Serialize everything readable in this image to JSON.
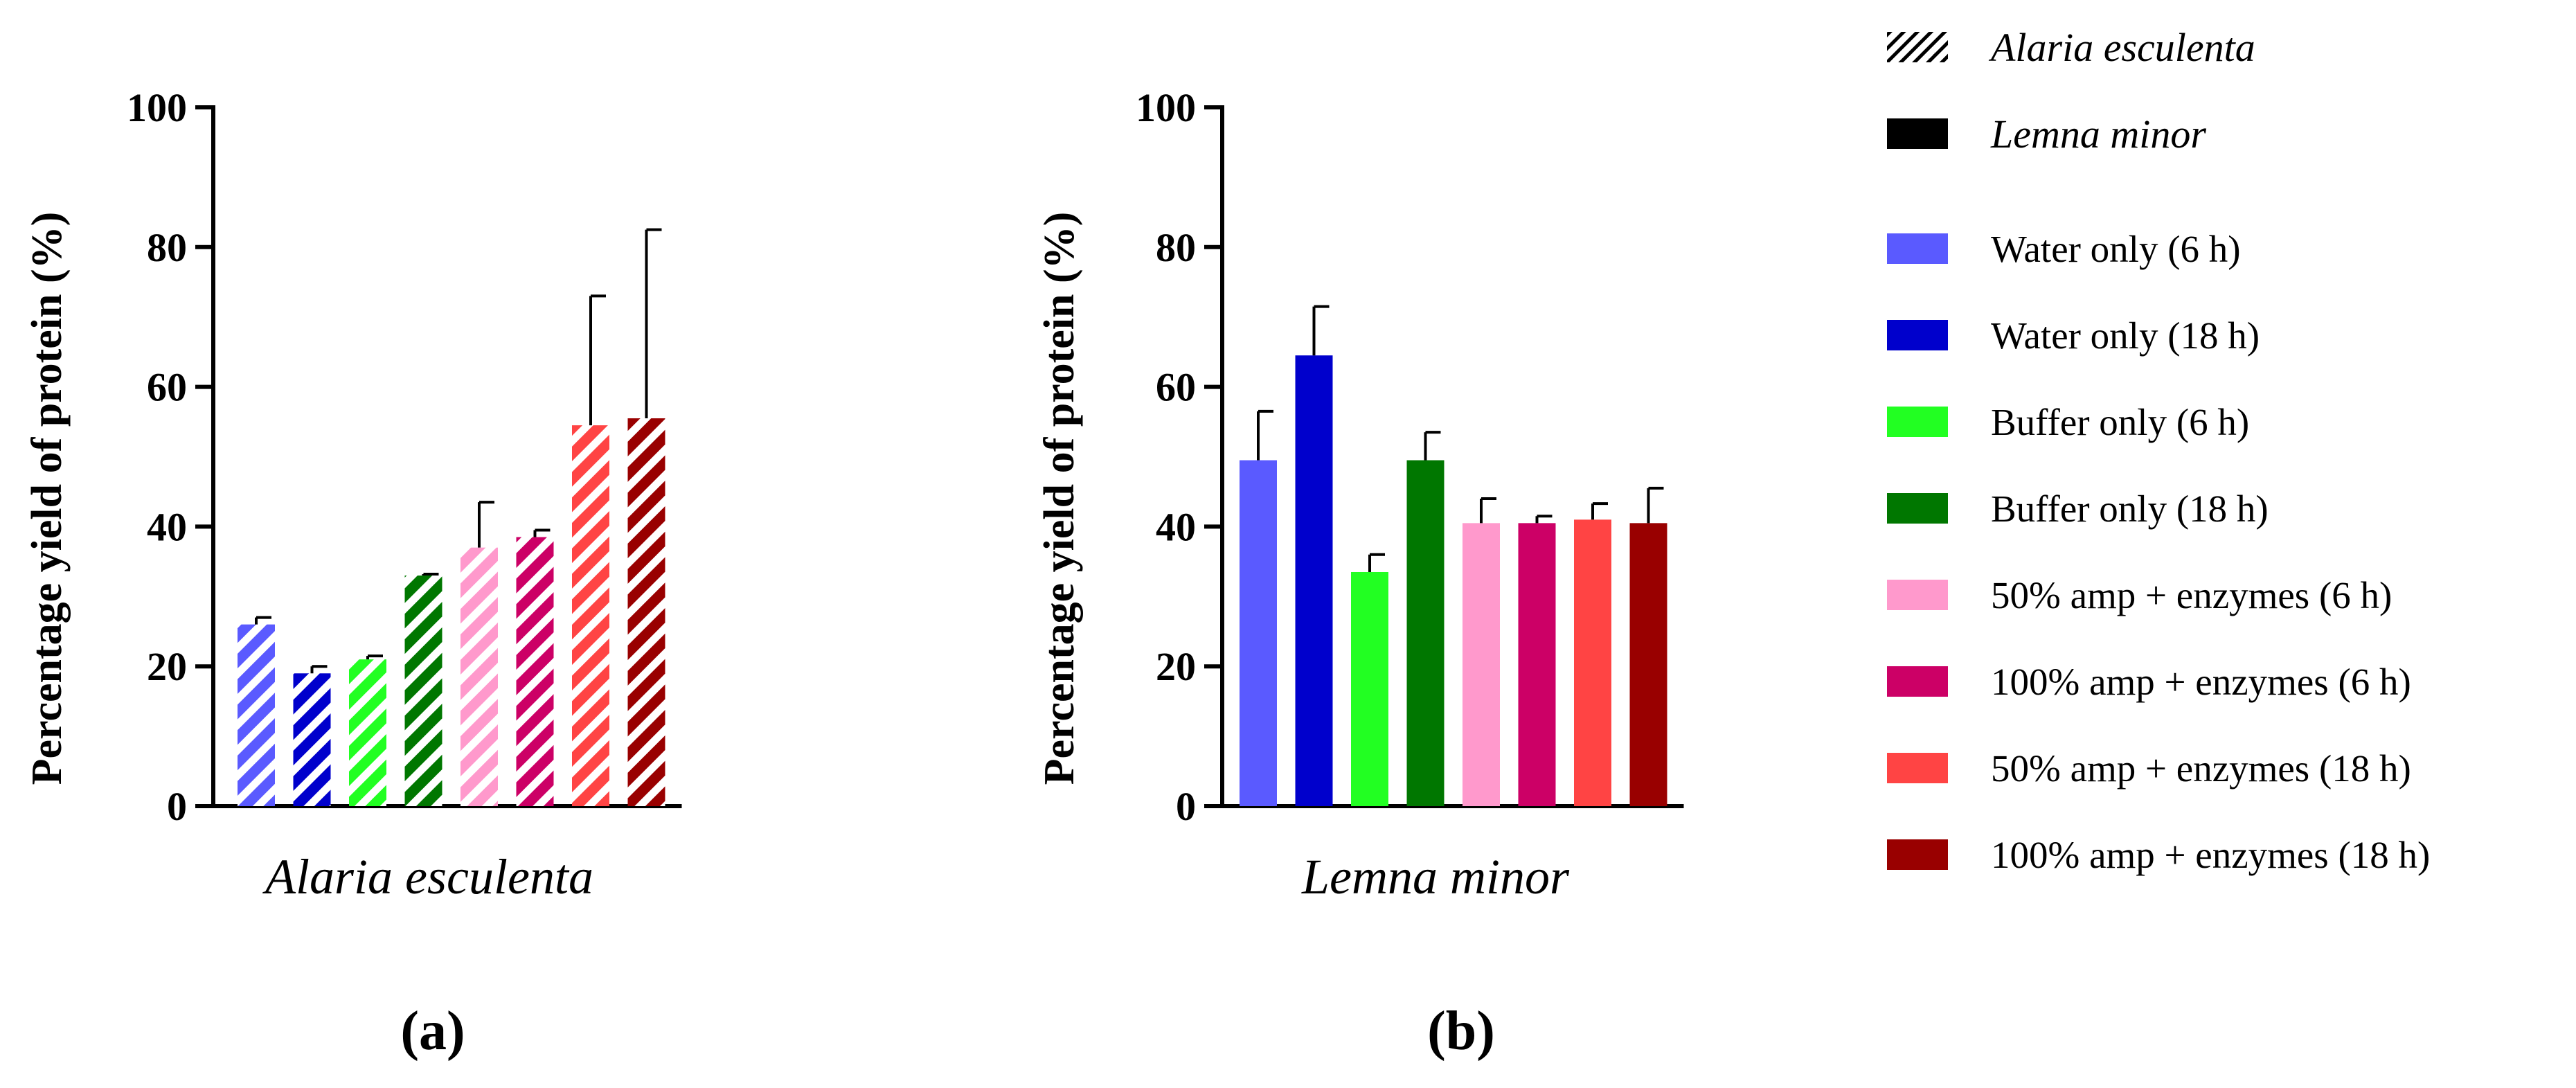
{
  "chart_data": [
    {
      "type": "bar",
      "panel": "(a)",
      "pattern": "hatched",
      "xlabel": "Alaria esculenta",
      "ylabel": "Percentage yield of protein (%)",
      "ylim": [
        0,
        100
      ],
      "yticks": [
        "0",
        "20",
        "40",
        "60",
        "80",
        "100"
      ],
      "categories": [
        "Water only (6 h)",
        "Water only (18 h)",
        "Buffer only (6 h)",
        "Buffer only (18 h)",
        "50% amp + enzymes (6 h)",
        "100% amp + enzymes (6 h)",
        "50% amp + enzymes (18 h)",
        "100% amp + enzymes (18 h)"
      ],
      "values": [
        26,
        19,
        21,
        33,
        37,
        38.5,
        54.5,
        55.5
      ],
      "errors": [
        1,
        1,
        0.5,
        0.2,
        6.5,
        1,
        18.5,
        27
      ],
      "colors": [
        "#5a5aff",
        "#0000cc",
        "#22ff22",
        "#007700",
        "#ff99cc",
        "#cc0066",
        "#ff4444",
        "#990000"
      ]
    },
    {
      "type": "bar",
      "panel": "(b)",
      "pattern": "solid",
      "xlabel": "Lemna minor",
      "ylabel": "Percentage yield of protein (%)",
      "ylim": [
        0,
        100
      ],
      "yticks": [
        "0",
        "20",
        "40",
        "60",
        "80",
        "100"
      ],
      "categories": [
        "Water only (6 h)",
        "Water only (18 h)",
        "Buffer only (6 h)",
        "Buffer only (18 h)",
        "50% amp + enzymes (6 h)",
        "100% amp + enzymes (6 h)",
        "50% amp + enzymes (18 h)",
        "100% amp + enzymes (18 h)"
      ],
      "values": [
        49.5,
        64.5,
        33.5,
        49.5,
        40.5,
        40.5,
        41,
        40.5
      ],
      "errors": [
        7,
        7,
        2.5,
        4,
        3.5,
        1,
        2.3,
        5
      ],
      "colors": [
        "#5a5aff",
        "#0000cc",
        "#22ff22",
        "#007700",
        "#ff99cc",
        "#cc0066",
        "#ff4444",
        "#990000"
      ]
    }
  ],
  "legend": {
    "pattern_items": [
      {
        "label": "Alaria esculenta",
        "pattern": "hatched"
      },
      {
        "label": "Lemna minor",
        "pattern": "solid"
      }
    ],
    "color_items": [
      {
        "label": "Water only (6 h)",
        "color": "#5a5aff"
      },
      {
        "label": "Water only (18 h)",
        "color": "#0000cc"
      },
      {
        "label": "Buffer only (6 h)",
        "color": "#22ff22"
      },
      {
        "label": "Buffer only (18 h)",
        "color": "#007700"
      },
      {
        "label": "50% amp + enzymes (6 h)",
        "color": "#ff99cc"
      },
      {
        "label": "100% amp + enzymes (6 h)",
        "color": "#cc0066"
      },
      {
        "label": "50% amp + enzymes (18 h)",
        "color": "#ff4444"
      },
      {
        "label": "100% amp + enzymes (18 h)",
        "color": "#990000"
      }
    ]
  }
}
